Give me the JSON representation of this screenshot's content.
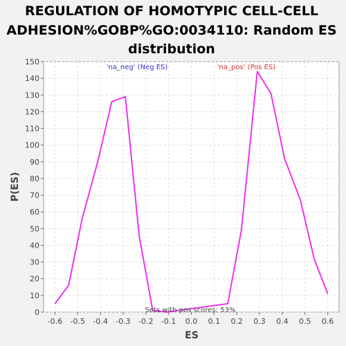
{
  "chart_data": {
    "type": "line",
    "title_lines": [
      "REGULATION OF HOMOTYPIC CELL-CELL",
      "ADHESION%GOBP%GO:0034110: Random ES",
      "distribution"
    ],
    "xlabel": "ES",
    "ylabel": "P(ES)",
    "xlim": [
      -0.65,
      0.65
    ],
    "ylim": [
      0,
      150
    ],
    "xticks": [
      -0.6,
      -0.5,
      -0.4,
      -0.3,
      -0.2,
      -0.1,
      0.0,
      0.1,
      0.2,
      0.3,
      0.4,
      0.5,
      0.6
    ],
    "xtick_labels": [
      "-0.6",
      "-0.5",
      "-0.4",
      "-0.3",
      "-0.2",
      "-0.1",
      "0.0",
      "0.1",
      "0.2",
      "0.3",
      "0.4",
      "0.5",
      "0.6"
    ],
    "yticks": [
      0,
      10,
      20,
      30,
      40,
      50,
      60,
      70,
      80,
      90,
      100,
      110,
      120,
      130,
      140,
      150
    ],
    "ytick_labels": [
      "0",
      "10",
      "20",
      "30",
      "40",
      "50",
      "60",
      "70",
      "80",
      "90",
      "100",
      "110",
      "120",
      "130",
      "140",
      "150"
    ],
    "grid": true,
    "series": [
      {
        "color": "#ee33ee",
        "x": [
          -0.6,
          -0.54,
          -0.48,
          -0.41,
          -0.35,
          -0.29,
          -0.23,
          -0.17,
          -0.11,
          0.16,
          0.22,
          0.29,
          0.35,
          0.41,
          0.48,
          0.54,
          0.6
        ],
        "y": [
          5,
          16,
          56,
          91,
          126,
          129,
          46,
          1,
          0,
          5,
          49,
          144,
          131,
          92,
          67,
          32,
          11
        ]
      }
    ],
    "annotations": [
      {
        "text": "'na_neg' (Neg ES)",
        "color": "#3333cc"
      },
      {
        "text": "'na_pos' (Pos ES)",
        "color": "#cc3333"
      },
      {
        "text": "Sets with pos scores: 53%",
        "color": "#444444"
      }
    ]
  }
}
